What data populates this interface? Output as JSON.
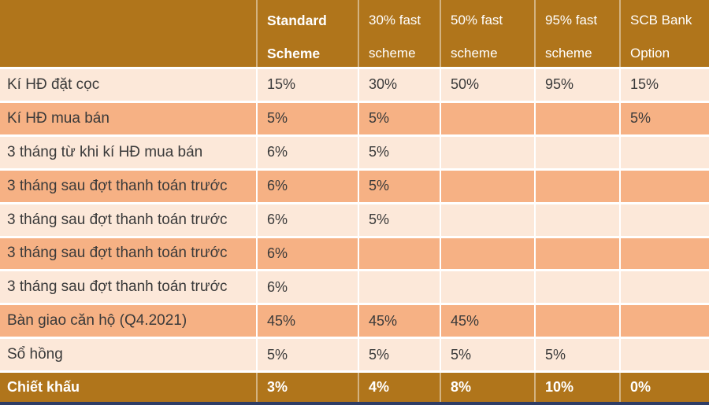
{
  "chart_data": {
    "type": "table",
    "title": "",
    "columns": [
      "",
      "Standard Scheme",
      "30% fast scheme",
      "50% fast scheme",
      "95% fast scheme",
      "SCB Bank Option"
    ],
    "rows": [
      [
        "Kí HĐ đặt cọc",
        "15%",
        "30%",
        "50%",
        "95%",
        "15%"
      ],
      [
        "Kí HĐ mua bán",
        "5%",
        "5%",
        "",
        "",
        "5%"
      ],
      [
        "3 tháng từ khi kí HĐ mua bán",
        "6%",
        "5%",
        "",
        "",
        ""
      ],
      [
        "3 tháng sau đợt thanh toán trước",
        "6%",
        "5%",
        "",
        "",
        ""
      ],
      [
        "3 tháng sau đợt thanh toán trước",
        "6%",
        "5%",
        "",
        "",
        ""
      ],
      [
        "3 tháng sau đợt thanh toán trước",
        "6%",
        "",
        "",
        "",
        ""
      ],
      [
        "3 tháng sau đợt thanh toán trước",
        "6%",
        "",
        "",
        "",
        ""
      ],
      [
        "Bàn giao căn hộ (Q4.2021)",
        "45%",
        "45%",
        "45%",
        "",
        ""
      ],
      [
        "Sổ hồng",
        "5%",
        "5%",
        "5%",
        "5%",
        ""
      ],
      [
        "Chiết khấu",
        "3%",
        "4%",
        "8%",
        "10%",
        "0%"
      ]
    ],
    "layout": {
      "striped_rows": true,
      "header_row": true,
      "emphasized_last_row": true
    }
  },
  "colors": {
    "header_bg": "#B0751B",
    "row_light": "#FCE8D9",
    "row_orange": "#F6B184",
    "body_text": "#3A3A3A",
    "header_text": "#FFFFFF",
    "bottom_line": "#2E3D66"
  }
}
